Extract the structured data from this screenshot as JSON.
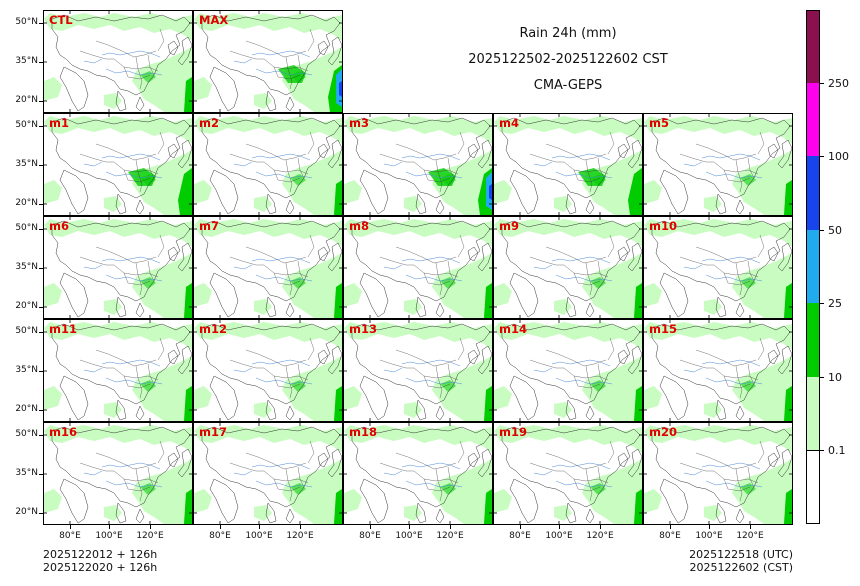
{
  "title": {
    "line1": "Rain 24h (mm)",
    "line2": "2025122502-2025122602 CST",
    "line3": "CMA-GEPS"
  },
  "panels": [
    "CTL",
    "MAX",
    "m1",
    "m2",
    "m3",
    "m4",
    "m5",
    "m6",
    "m7",
    "m8",
    "m9",
    "m10",
    "m11",
    "m12",
    "m13",
    "m14",
    "m15",
    "m16",
    "m17",
    "m18",
    "m19",
    "m20"
  ],
  "y_ticks": [
    "50°N",
    "35°N",
    "20°N"
  ],
  "x_ticks": [
    "80°E",
    "100°E",
    "120°E"
  ],
  "colorbar": {
    "labels": [
      "0.1",
      "10",
      "25",
      "50",
      "100",
      "250"
    ],
    "colors": [
      "#ffffff",
      "#c8fcc0",
      "#00cc00",
      "#22aaee",
      "#1844ee",
      "#ff00ee",
      "#8a1050"
    ]
  },
  "footer": {
    "left_line1": "2025122012 + 126h",
    "left_line2": "2025122020 + 126h",
    "right_line1": "2025122518 (UTC)",
    "right_line2": "2025122602 (CST)"
  },
  "colors": {
    "label_red": "#e00000",
    "light_green": "#c8fcc0",
    "green": "#00cc00",
    "blue": "#22aaee"
  }
}
